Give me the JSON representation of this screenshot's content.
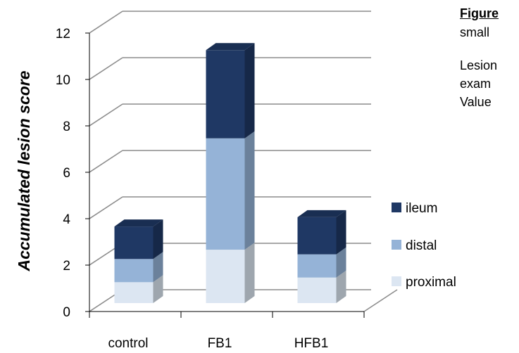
{
  "side_text": {
    "figure_label": "Figure",
    "caption_line_1": "small",
    "caption_line_2": "Lesion",
    "caption_line_3": "exam",
    "caption_line_4": "Value"
  },
  "chart_data": {
    "type": "bar",
    "stacked": true,
    "three_d": true,
    "title": "",
    "xlabel": "",
    "ylabel": "Accumulated lesion score",
    "ylim": [
      0,
      12
    ],
    "yticks": [
      0,
      2,
      4,
      6,
      8,
      10,
      12
    ],
    "grid": true,
    "legend_position": "right",
    "categories": [
      "control",
      "FB1",
      "HFB1"
    ],
    "series": [
      {
        "name": "proximal",
        "color": "#dce6f2",
        "values": [
          0.9,
          2.3,
          1.1
        ]
      },
      {
        "name": "distal",
        "color": "#95b3d7",
        "values": [
          1.0,
          4.8,
          1.0
        ]
      },
      {
        "name": "ileum",
        "color": "#1f3864",
        "values": [
          1.4,
          3.8,
          1.6
        ]
      }
    ],
    "legend_order": [
      "ileum",
      "distal",
      "proximal"
    ]
  }
}
